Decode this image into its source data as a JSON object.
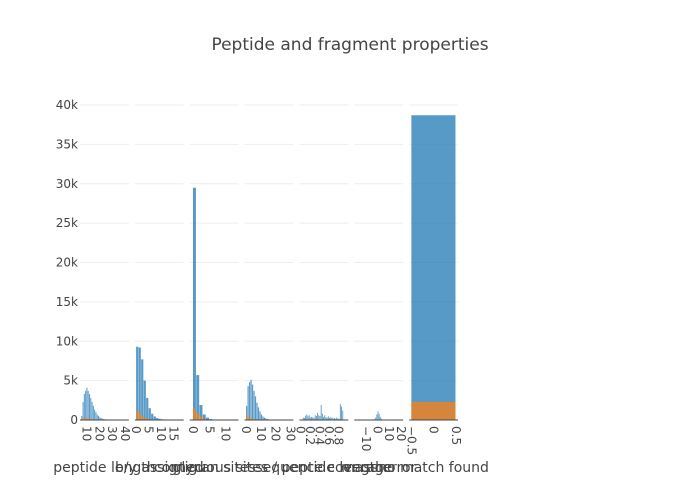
{
  "title": "Peptide and fragment properties",
  "chart_data": {
    "type": "bar",
    "title": "Peptide and fragment properties",
    "ylim": [
      0,
      40000
    ],
    "y_ticks": [
      0,
      5000,
      10000,
      15000,
      20000,
      25000,
      30000,
      35000,
      40000
    ],
    "y_tick_labels": [
      "0",
      "5k",
      "10k",
      "15k",
      "20k",
      "25k",
      "30k",
      "35k",
      "40k"
    ],
    "colors": [
      "#1f77b4",
      "#ff7f0e"
    ],
    "grid": true,
    "legend": "none",
    "subplots": [
      {
        "xlabel": "peptide length",
        "xlim": [
          5,
          43
        ],
        "x_tick_values": [
          10,
          20,
          30,
          40
        ],
        "x_tick_labels": [
          "10",
          "20",
          "30",
          "40"
        ],
        "bin_start": 6,
        "bin_width": 1,
        "series": [
          {
            "values": [
              500,
              2300,
              3300,
              3700,
              4100,
              3700,
              3300,
              2800,
              2300,
              1800,
              1300,
              1000,
              700,
              500,
              350,
              250,
              180,
              130,
              90,
              70,
              50,
              40,
              30,
              25,
              20,
              15,
              12,
              10,
              8,
              6,
              5,
              4,
              3,
              2
            ]
          },
          {
            "values": [
              80,
              250,
              300,
              280,
              250,
              200,
              160,
              120,
              90,
              60,
              40,
              25,
              15,
              10,
              6,
              4,
              3,
              2,
              1,
              1,
              0,
              0,
              0,
              0,
              0,
              0,
              0,
              0,
              0,
              0,
              0,
              0,
              0,
              0
            ]
          }
        ]
      },
      {
        "xlabel": "b/y assigned",
        "xlim": [
          -0.5,
          19
        ],
        "x_tick_values": [
          0,
          5,
          10,
          15
        ],
        "x_tick_labels": [
          "0",
          "5",
          "10",
          "15"
        ],
        "bin_start": 0,
        "bin_width": 1,
        "series": [
          {
            "values": [
              9300,
              9200,
              7700,
              5000,
              2800,
              1500,
              800,
              450,
              250,
              150,
              90,
              60,
              40,
              25,
              15,
              10,
              6,
              4,
              3
            ]
          },
          {
            "values": [
              1200,
              800,
              500,
              300,
              150,
              80,
              40,
              20,
              10,
              5,
              3,
              2,
              1,
              1,
              0,
              0,
              0,
              0,
              0
            ]
          }
        ]
      },
      {
        "xlabel": "glycan sites",
        "xlim": [
          -1,
          14
        ],
        "x_tick_values": [
          0,
          5,
          10
        ],
        "x_tick_labels": [
          "0",
          "5",
          "10"
        ],
        "bin_start": 0,
        "bin_width": 1,
        "series": [
          {
            "values": [
              29500,
              5700,
              1900,
              700,
              300,
              120,
              60,
              30,
              15,
              8,
              5,
              3,
              2,
              1
            ]
          },
          {
            "values": [
              1500,
              800,
              400,
              150,
              60,
              25,
              10,
              5,
              2,
              1,
              0,
              0,
              0,
              0
            ]
          }
        ]
      },
      {
        "xlabel": "contiguous sites / peptide length",
        "xlim": [
          -1,
          32
        ],
        "x_tick_values": [
          0,
          10,
          20,
          30
        ],
        "x_tick_labels": [
          "0",
          "10",
          "20",
          "30"
        ],
        "bin_start": 0,
        "bin_width": 1,
        "series": [
          {
            "values": [
              1800,
              4300,
              4800,
              5100,
              4500,
              3700,
              3000,
              2200,
              1600,
              1100,
              700,
              450,
              300,
              200,
              130,
              90,
              60,
              40,
              25,
              18,
              12,
              8,
              5,
              4,
              3,
              2,
              2,
              1,
              1,
              1
            ]
          },
          {
            "values": [
              700,
              400,
              300,
              250,
              200,
              150,
              110,
              80,
              55,
              35,
              20,
              12,
              8,
              5,
              3,
              2,
              1,
              1,
              0,
              0,
              0,
              0,
              0,
              0,
              0,
              0,
              0,
              0,
              0,
              0
            ]
          }
        ]
      },
      {
        "xlabel": "sequence coverage",
        "xlim": [
          -0.02,
          1.0
        ],
        "x_tick_values": [
          0,
          0.2,
          0.4,
          0.6,
          0.8
        ],
        "x_tick_labels": [
          "0",
          "0.2",
          "0.4",
          "0.6",
          "0.8"
        ],
        "bin_start": 0.05,
        "bin_width": 0.025,
        "series": [
          {
            "values": [
              300,
              250,
              550,
              700,
              450,
              600,
              300,
              400,
              350,
              250,
              600,
              500,
              900,
              600,
              500,
              1900,
              800,
              400,
              600,
              350,
              300,
              450,
              250,
              350,
              300,
              200,
              250,
              150,
              300,
              200,
              150,
              2000,
              1700,
              1200
            ]
          },
          {
            "values": [
              20,
              15,
              30,
              40,
              25,
              30,
              15,
              20,
              20,
              15,
              30,
              25,
              45,
              30,
              25,
              80,
              40,
              20,
              30,
              20,
              15,
              20,
              12,
              15,
              12,
              10,
              10,
              8,
              12,
              10,
              8,
              80,
              60,
              40
            ]
          }
        ]
      },
      {
        "xlabel": "mass error",
        "xlim": [
          -20,
          22
        ],
        "x_tick_values": [
          -10,
          0,
          10,
          20
        ],
        "x_tick_labels": [
          "−10",
          "0",
          "10",
          "20"
        ],
        "bin_start": -3,
        "bin_width": 1,
        "series": [
          {
            "values": [
              100,
              300,
              700,
              1100,
              800,
              400,
              150
            ]
          },
          {
            "values": [
              5,
              15,
              30,
              45,
              35,
              15,
              5
            ]
          }
        ]
      },
      {
        "xlabel": "no match found",
        "xlim": [
          -0.55,
          0.55
        ],
        "x_tick_values": [
          -0.5,
          0,
          0.5
        ],
        "x_tick_labels": [
          "−0.5",
          "0",
          "0.5"
        ],
        "bin_start": -0.5,
        "bin_width": 1,
        "series": [
          {
            "values": [
              38700
            ]
          },
          {
            "values": [
              2300
            ]
          }
        ]
      }
    ]
  }
}
